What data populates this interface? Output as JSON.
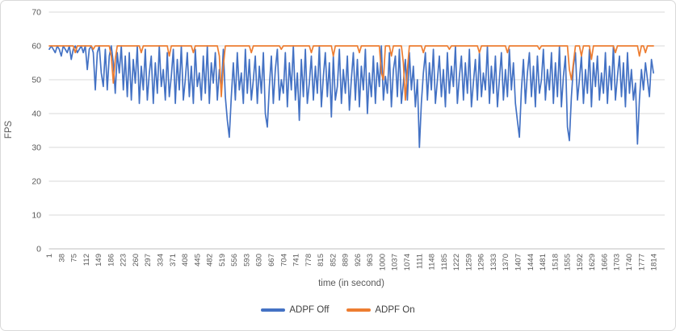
{
  "chart_data": {
    "type": "line",
    "title": "",
    "xlabel": "time (in second)",
    "ylabel": "FPS",
    "ylim": [
      0,
      70
    ],
    "xlim": [
      1,
      1814
    ],
    "grid": true,
    "legend_position": "bottom",
    "y_ticks": [
      0,
      10,
      20,
      30,
      40,
      50,
      60,
      70
    ],
    "x_tick_labels": [
      "1",
      "38",
      "75",
      "112",
      "149",
      "186",
      "223",
      "260",
      "297",
      "334",
      "371",
      "408",
      "445",
      "482",
      "519",
      "556",
      "593",
      "630",
      "667",
      "704",
      "741",
      "778",
      "815",
      "852",
      "889",
      "926",
      "963",
      "1000",
      "1037",
      "1074",
      "1111",
      "1148",
      "1185",
      "1222",
      "1259",
      "1296",
      "1333",
      "1370",
      "1407",
      "1444",
      "1481",
      "1518",
      "1555",
      "1592",
      "1629",
      "1666",
      "1703",
      "1740",
      "1777",
      "1814"
    ],
    "x_start": 1,
    "x_step": 6,
    "colors": {
      "adpf_off": "#4472C4",
      "adpf_on": "#ED7D31",
      "gridline": "#D9D9D9",
      "axis_line": "#BFBFBF",
      "axis_text": "#595959",
      "legend_text": "#404040"
    },
    "series": [
      {
        "name": "ADPF Off",
        "color": "#4472C4",
        "values": [
          59,
          60,
          59,
          58,
          60,
          59,
          57,
          60,
          59,
          58,
          60,
          56,
          59,
          60,
          58,
          59,
          60,
          58,
          60,
          53,
          59,
          60,
          58,
          47,
          58,
          60,
          52,
          48,
          59,
          47,
          57,
          60,
          55,
          46,
          58,
          52,
          60,
          47,
          57,
          45,
          58,
          44,
          56,
          49,
          60,
          43,
          54,
          47,
          59,
          44,
          52,
          57,
          43,
          55,
          46,
          60,
          48,
          53,
          44,
          58,
          45,
          51,
          59,
          43,
          56,
          47,
          60,
          44,
          50,
          58,
          45,
          54,
          43,
          59,
          48,
          52,
          44,
          57,
          46,
          60,
          43,
          55,
          49,
          58,
          44,
          53,
          47,
          59,
          45,
          38,
          33,
          45,
          55,
          44,
          58,
          47,
          52,
          43,
          59,
          46,
          56,
          44,
          50,
          57,
          43,
          54,
          46,
          58,
          40,
          36,
          48,
          57,
          43,
          53,
          59,
          44,
          50,
          46,
          58,
          42,
          55,
          47,
          60,
          44,
          52,
          38,
          56,
          45,
          59,
          43,
          49,
          57,
          44,
          54,
          46,
          60,
          42,
          51,
          58,
          45,
          55,
          39,
          57,
          44,
          48,
          59,
          43,
          53,
          46,
          57,
          41,
          50,
          58,
          44,
          56,
          42,
          54,
          47,
          59,
          40,
          52,
          45,
          57,
          43,
          55,
          48,
          60,
          44,
          51,
          46,
          58,
          42,
          53,
          57,
          45,
          59,
          43,
          49,
          56,
          44,
          58,
          47,
          54,
          42,
          50,
          30,
          43,
          52,
          58,
          44,
          55,
          47,
          59,
          43,
          50,
          57,
          45,
          53,
          42,
          58,
          46,
          54,
          48,
          60,
          43,
          51,
          57,
          44,
          55,
          46,
          59,
          42,
          49,
          56,
          44,
          58,
          45,
          52,
          47,
          60,
          43,
          54,
          46,
          57,
          42,
          50,
          58,
          44,
          53,
          45,
          59,
          47,
          55,
          43,
          38,
          33,
          47,
          56,
          43,
          52,
          58,
          45,
          54,
          42,
          57,
          46,
          50,
          59,
          44,
          53,
          47,
          58,
          43,
          55,
          45,
          60,
          42,
          51,
          57,
          36,
          32,
          45,
          54,
          58,
          44,
          50,
          57,
          43,
          53,
          46,
          59,
          42,
          55,
          48,
          57,
          44,
          52,
          46,
          58,
          43,
          54,
          47,
          60,
          44,
          51,
          57,
          45,
          55,
          42,
          58,
          46,
          53,
          44,
          49,
          31,
          44,
          53,
          47,
          55,
          50,
          45,
          56,
          52
        ]
      },
      {
        "name": "ADPF On",
        "color": "#ED7D31",
        "values": [
          60,
          60,
          60,
          60,
          60,
          60,
          60,
          60,
          60,
          60,
          60,
          60,
          60,
          58,
          60,
          60,
          60,
          60,
          60,
          60,
          60,
          60,
          59,
          60,
          60,
          60,
          60,
          60,
          60,
          60,
          60,
          57,
          49,
          56,
          60,
          60,
          60,
          60,
          60,
          60,
          60,
          60,
          60,
          60,
          60,
          60,
          58,
          60,
          60,
          60,
          60,
          60,
          60,
          60,
          60,
          60,
          60,
          60,
          60,
          60,
          57,
          60,
          60,
          60,
          60,
          60,
          60,
          60,
          60,
          60,
          60,
          60,
          58,
          60,
          60,
          60,
          60,
          60,
          60,
          60,
          60,
          60,
          60,
          60,
          60,
          57,
          45,
          54,
          60,
          60,
          60,
          60,
          60,
          60,
          60,
          60,
          60,
          60,
          60,
          60,
          60,
          58,
          60,
          60,
          60,
          60,
          60,
          60,
          60,
          60,
          60,
          60,
          60,
          60,
          60,
          60,
          59,
          60,
          60,
          60,
          60,
          60,
          60,
          60,
          60,
          60,
          60,
          60,
          60,
          60,
          60,
          58,
          60,
          60,
          60,
          60,
          60,
          60,
          60,
          60,
          60,
          60,
          57,
          60,
          60,
          60,
          60,
          60,
          60,
          60,
          60,
          60,
          60,
          60,
          60,
          58,
          60,
          60,
          60,
          60,
          60,
          60,
          60,
          60,
          60,
          60,
          52,
          50,
          60,
          60,
          60,
          57,
          60,
          60,
          60,
          60,
          60,
          55,
          44,
          53,
          60,
          60,
          60,
          60,
          60,
          60,
          60,
          58,
          60,
          60,
          60,
          60,
          60,
          60,
          60,
          60,
          60,
          60,
          60,
          60,
          59,
          60,
          60,
          60,
          60,
          60,
          60,
          60,
          60,
          60,
          60,
          60,
          60,
          60,
          60,
          58,
          60,
          60,
          60,
          60,
          60,
          60,
          60,
          60,
          60,
          60,
          60,
          60,
          60,
          58,
          60,
          60,
          60,
          60,
          60,
          60,
          60,
          60,
          60,
          60,
          60,
          60,
          60,
          60,
          60,
          59,
          60,
          60,
          60,
          60,
          60,
          60,
          60,
          60,
          60,
          60,
          60,
          60,
          60,
          60,
          53,
          50,
          55,
          60,
          60,
          60,
          57,
          60,
          60,
          60,
          60,
          56,
          60,
          60,
          60,
          60,
          60,
          60,
          60,
          60,
          60,
          60,
          60,
          58,
          60,
          60,
          60,
          60,
          60,
          60,
          60,
          60,
          60,
          60,
          60,
          57,
          60,
          60,
          58,
          60,
          60,
          60,
          60
        ]
      }
    ]
  },
  "legend": {
    "adpf_off_label": "ADPF Off",
    "adpf_on_label": "ADPF On"
  }
}
